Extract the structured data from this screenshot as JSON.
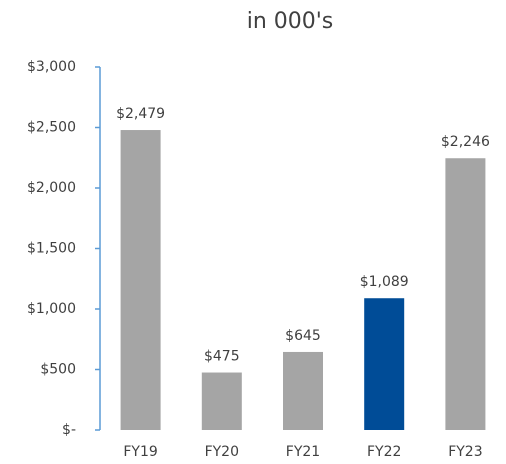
{
  "chart_data": {
    "type": "bar",
    "title": "in 000's",
    "categories": [
      "FY19",
      "FY20",
      "FY21",
      "FY22",
      "FY23"
    ],
    "values": [
      2479,
      475,
      645,
      1089,
      2246
    ],
    "value_labels": [
      "$2,479",
      "$475",
      "$645",
      "$1,089",
      "$2,246"
    ],
    "colors": [
      "#a5a5a5",
      "#a5a5a5",
      "#a5a5a5",
      "#004c97",
      "#a5a5a5"
    ],
    "ylim": [
      0,
      3000
    ],
    "yticks": [
      {
        "value": 0,
        "label": "$-"
      },
      {
        "value": 500,
        "label": "$500"
      },
      {
        "value": 1000,
        "label": "$1,000"
      },
      {
        "value": 1500,
        "label": "$1,500"
      },
      {
        "value": 2000,
        "label": "$2,000"
      },
      {
        "value": 2500,
        "label": "$2,500"
      },
      {
        "value": 3000,
        "label": "$3,000"
      }
    ],
    "grid": false
  }
}
